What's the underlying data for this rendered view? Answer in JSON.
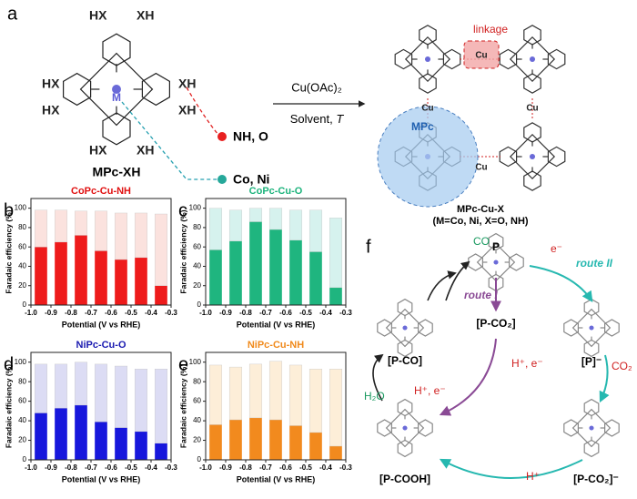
{
  "figure": {
    "panel_a": {
      "label": "a",
      "substituents": [
        "HX",
        "XH",
        "HX",
        "HX",
        "XH",
        "XH",
        "HX",
        "XH"
      ],
      "metal": "M",
      "x_options": "NH, O",
      "m_options": "Co, Ni",
      "monomer": "MPc-XH",
      "reagent": "Cu(OAc)₂",
      "conditions": "Solvent, ",
      "conditions_var": "T",
      "linkage": "linkage",
      "copper": [
        "Cu",
        "Cu",
        "Cu",
        "Cu"
      ],
      "unit": "MPc",
      "product": "MPc-Cu-X",
      "product_note": "(M=Co, Ni, X=O, NH)"
    },
    "panel_f": {
      "label": "f",
      "p": "P",
      "p_anion": "[P]⁻",
      "p_co2_anion": "[P-CO₂]⁻",
      "p_cooh": "[P-COOH]",
      "p_co": "[P-CO]",
      "p_co2": "[P-CO₂]",
      "co": "CO",
      "electron": "e⁻",
      "route_2": "route II",
      "route_1": "route I",
      "co2": "CO₂",
      "proton_electron_1": "H⁺, e⁻",
      "water": "H₂O",
      "proton_electron_2": "H⁺, e⁻",
      "proton": "H⁺"
    }
  },
  "chart_data": [
    {
      "type": "bar",
      "panel_label": "b",
      "title": "CoPc-Cu-NH",
      "title_color": "#e01010",
      "stacked": true,
      "ylabel": "Faradaic efficiency (%)",
      "xlabel": "Potential (V vs RHE)",
      "x": [
        -0.95,
        -0.85,
        -0.75,
        -0.65,
        -0.55,
        -0.45,
        -0.35
      ],
      "xlim": [
        -1.0,
        -0.3
      ],
      "xticks": [
        {
          "value": -1.0,
          "label": "-1.0"
        },
        -0.9,
        -0.8,
        -0.7,
        -0.6,
        -0.5,
        -0.4,
        -0.3
      ],
      "ylim": [
        0,
        110
      ],
      "yticks": [
        0,
        20,
        40,
        60,
        80,
        100
      ],
      "series": [
        {
          "color": "#ee1b1b",
          "values": [
            60,
            65,
            72,
            56,
            47,
            49,
            20
          ]
        },
        {
          "color": "#fbe2de",
          "values": [
            38,
            33,
            25,
            41,
            48,
            46,
            74
          ]
        }
      ]
    },
    {
      "type": "bar",
      "panel_label": "c",
      "title": "CoPc-Cu-O",
      "title_color": "#1db37c",
      "stacked": true,
      "ylabel": "Faradaic efficiency (%)",
      "xlabel": "Potential (V vs RHE)",
      "x": [
        -0.95,
        -0.85,
        -0.75,
        -0.65,
        -0.55,
        -0.45,
        -0.35
      ],
      "xlim": [
        -1.0,
        -0.3
      ],
      "xticks": [
        {
          "value": -1.0,
          "label": "-1.0"
        },
        -0.9,
        -0.8,
        -0.7,
        -0.6,
        -0.5,
        -0.4,
        -0.3
      ],
      "ylim": [
        0,
        110
      ],
      "yticks": [
        0,
        20,
        40,
        60,
        80,
        100
      ],
      "series": [
        {
          "color": "#1fb57f",
          "values": [
            57,
            66,
            86,
            78,
            67,
            55,
            18
          ]
        },
        {
          "color": "#d6f2ee",
          "values": [
            43,
            32,
            14,
            22,
            31,
            43,
            72
          ]
        }
      ]
    },
    {
      "type": "bar",
      "panel_label": "d",
      "title": "NiPc-Cu-O",
      "title_color": "#1a1ab0",
      "stacked": true,
      "ylabel": "Faradaic efficiency (%)",
      "xlabel": "Potential (V vs RHE)",
      "x": [
        -0.95,
        -0.85,
        -0.75,
        -0.65,
        -0.55,
        -0.45,
        -0.35
      ],
      "xlim": [
        -1.0,
        -0.3
      ],
      "xticks": [
        {
          "value": -1.0,
          "label": "-1.0"
        },
        -0.9,
        -0.8,
        -0.7,
        -0.6,
        -0.5,
        -0.4,
        -0.3
      ],
      "ylim": [
        0,
        110
      ],
      "yticks": [
        0,
        20,
        40,
        60,
        80,
        100
      ],
      "series": [
        {
          "color": "#1717dc",
          "values": [
            48,
            53,
            56,
            39,
            33,
            29,
            17
          ]
        },
        {
          "color": "#dcdcf4",
          "values": [
            50,
            45,
            44,
            59,
            63,
            64,
            76
          ]
        }
      ]
    },
    {
      "type": "bar",
      "panel_label": "e",
      "title": "NiPc-Cu-NH",
      "title_color": "#f08a1c",
      "stacked": true,
      "ylabel": "Faradaic efficiency (%)",
      "xlabel": "Potential (V vs RHE)",
      "x": [
        -0.95,
        -0.85,
        -0.75,
        -0.65,
        -0.55,
        -0.45,
        -0.35
      ],
      "xlim": [
        -1.0,
        -0.3
      ],
      "xticks": [
        {
          "value": -1.0,
          "label": "-1.0"
        },
        -0.9,
        -0.8,
        -0.7,
        -0.6,
        -0.5,
        -0.4,
        -0.3
      ],
      "ylim": [
        0,
        110
      ],
      "yticks": [
        0,
        20,
        40,
        60,
        80,
        100
      ],
      "series": [
        {
          "color": "#f28a1e",
          "values": [
            36,
            41,
            43,
            41,
            35,
            28,
            14
          ]
        },
        {
          "color": "#fdeed8",
          "values": [
            61,
            54,
            55,
            60,
            62,
            65,
            79
          ]
        }
      ]
    }
  ]
}
